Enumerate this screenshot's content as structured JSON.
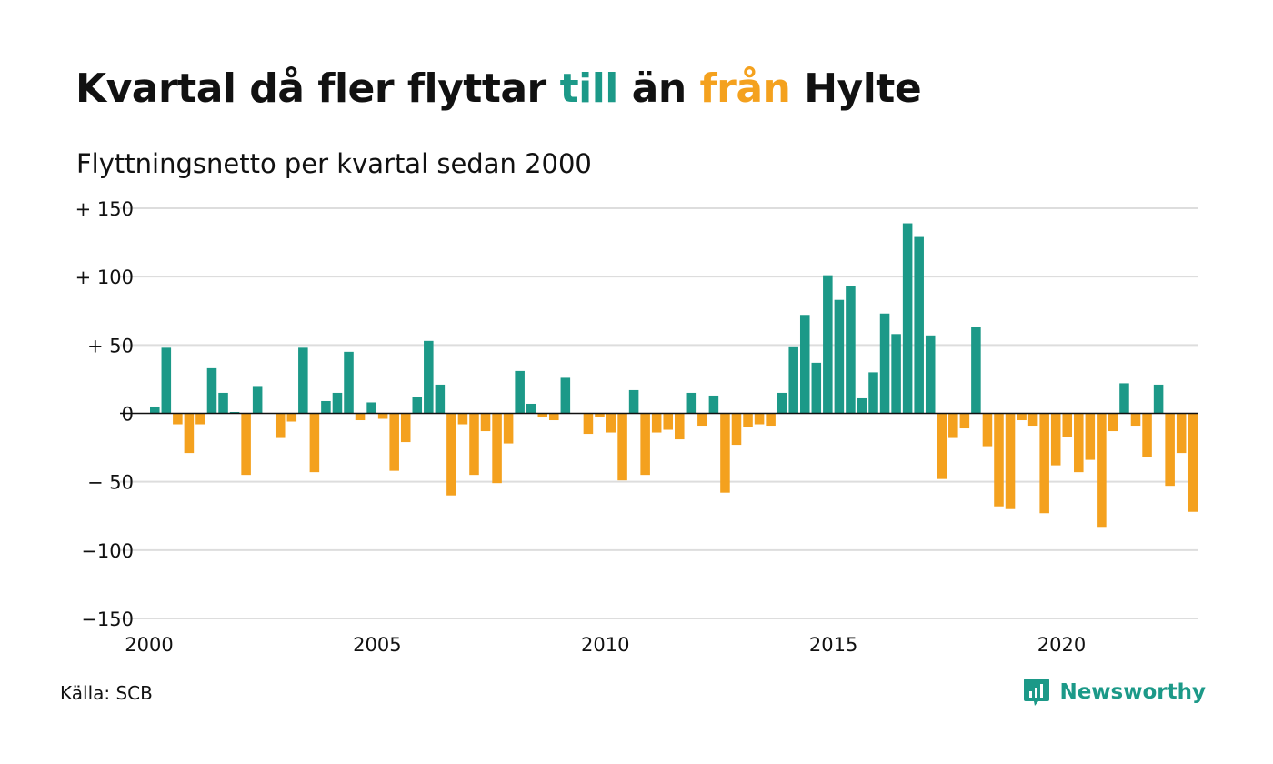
{
  "title": {
    "part1": "Kvartal då fler flyttar ",
    "word_in": "till",
    "part2": " än ",
    "word_out": "från",
    "part3": " Hylte"
  },
  "subtitle": "Flyttningsnetto per kvartal sedan 2000",
  "source": "Källa: SCB",
  "brand": {
    "name": "Newsworthy",
    "icon": "newsworthy-logo-icon"
  },
  "colors": {
    "positive": "#1c9988",
    "negative": "#f4a11e",
    "grid": "#dddddd",
    "axis": "#111111",
    "text": "#111111"
  },
  "chart_data": {
    "type": "bar",
    "title": "Kvartal då fler flyttar till än från Hylte",
    "subtitle": "Flyttningsnetto per kvartal sedan 2000",
    "xlabel": "",
    "ylabel": "",
    "x_start": 2000,
    "periods_per_year": 4,
    "ylim": [
      -150,
      150
    ],
    "yticks": [
      150,
      100,
      50,
      0,
      -50,
      -100,
      -150
    ],
    "ytick_labels": [
      "+ 150",
      "+ 100",
      "+  50",
      "0",
      "− 50",
      "−100",
      "−150"
    ],
    "xticks": [
      2000,
      2005,
      2010,
      2015,
      2020
    ],
    "xtick_labels": [
      "2000",
      "2005",
      "2010",
      "2015",
      "2020"
    ],
    "grid": true,
    "legend": "none",
    "values": [
      5,
      48,
      -8,
      -29,
      -8,
      33,
      15,
      1,
      -45,
      20,
      0,
      -18,
      -6,
      48,
      -43,
      9,
      15,
      45,
      -5,
      8,
      -4,
      -42,
      -21,
      12,
      53,
      21,
      -60,
      -8,
      -45,
      -13,
      -51,
      -22,
      31,
      7,
      -3,
      -5,
      26,
      0,
      -15,
      -3,
      -14,
      -49,
      17,
      -45,
      -14,
      -12,
      -19,
      15,
      -9,
      13,
      -58,
      -23,
      -10,
      -8,
      -9,
      15,
      49,
      72,
      37,
      101,
      83,
      93,
      11,
      30,
      73,
      58,
      139,
      129,
      57,
      -48,
      -18,
      -11,
      63,
      -24,
      -68,
      -70,
      -5,
      -9,
      -73,
      -38,
      -17,
      -43,
      -34,
      -83,
      -13,
      22,
      -9,
      -32,
      21,
      -53,
      -29,
      -72
    ]
  }
}
